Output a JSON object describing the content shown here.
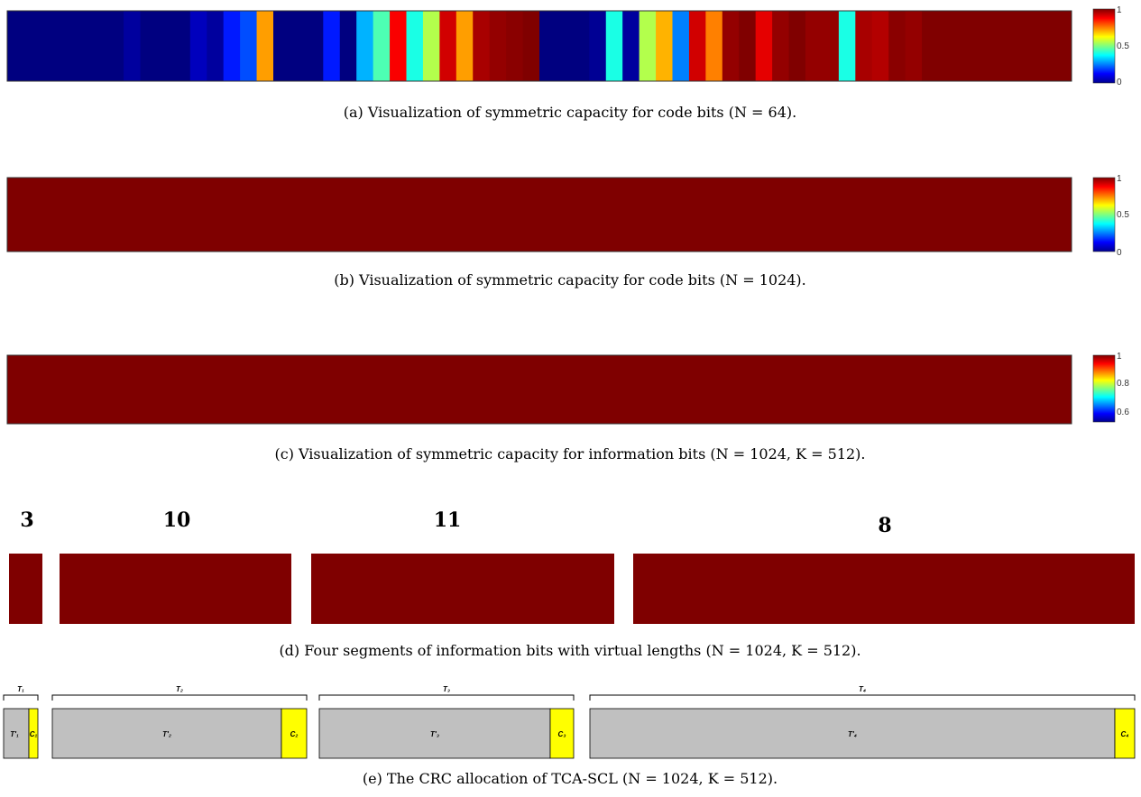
{
  "chart_data": [
    {
      "type": "heatmap",
      "caption": "(a) Visualization of symmetric capacity for code bits (N = 64).",
      "n_cells": 64,
      "colorbar": {
        "min": 0,
        "max": 1,
        "ticks": [
          "1",
          "0.5",
          "0"
        ]
      },
      "values": [
        0,
        0,
        0,
        0,
        0,
        0,
        0,
        0.03,
        0,
        0,
        0,
        0.06,
        0.03,
        0.15,
        0.2,
        0.72,
        0,
        0,
        0,
        0.15,
        0,
        0.3,
        0.45,
        0.88,
        0.4,
        0.55,
        0.92,
        0.72,
        0.96,
        0.98,
        0.99,
        1.0,
        0,
        0,
        0,
        0.02,
        0.4,
        0.03,
        0.55,
        0.7,
        0.25,
        0.92,
        0.75,
        0.98,
        1.0,
        0.9,
        0.98,
        1.0,
        0.98,
        0.98,
        0.4,
        0.96,
        0.95,
        0.99,
        0.98,
        1.0,
        1.0,
        1.0,
        1.0,
        1.0,
        1.0,
        1.0,
        1.0,
        1.0
      ]
    },
    {
      "type": "heatmap",
      "caption": "(b) Visualization of symmetric capacity for code bits (N = 1024).",
      "colorbar": {
        "min": 0,
        "max": 1,
        "ticks": [
          "1",
          "0.5",
          "0"
        ]
      }
    },
    {
      "type": "heatmap",
      "caption": "(c) Visualization of symmetric capacity for information bits (N = 1024, K = 512).",
      "colorbar": {
        "min": 0.55,
        "max": 1,
        "ticks": [
          "1",
          "0.8",
          "0.6"
        ]
      }
    },
    {
      "type": "heatmap",
      "caption": "(d) Four segments of information bits with virtual lengths (N = 1024, K = 512).",
      "segment_labels": [
        "3",
        "10",
        "11",
        "8"
      ]
    },
    {
      "type": "diagram",
      "caption": "(e) The CRC allocation of TCA-SCL (N = 1024, K = 512).",
      "segments": [
        {
          "brace": "T₁",
          "body": "T'₁",
          "crc": "C₁"
        },
        {
          "brace": "T₂",
          "body": "T'₂",
          "crc": "C₂"
        },
        {
          "brace": "T₃",
          "body": "T'₃",
          "crc": "C₃"
        },
        {
          "brace": "T₄",
          "body": "T'₄",
          "crc": "C₄"
        }
      ],
      "colors": {
        "body": "#c0c0c0",
        "crc": "#ffff00"
      }
    }
  ]
}
